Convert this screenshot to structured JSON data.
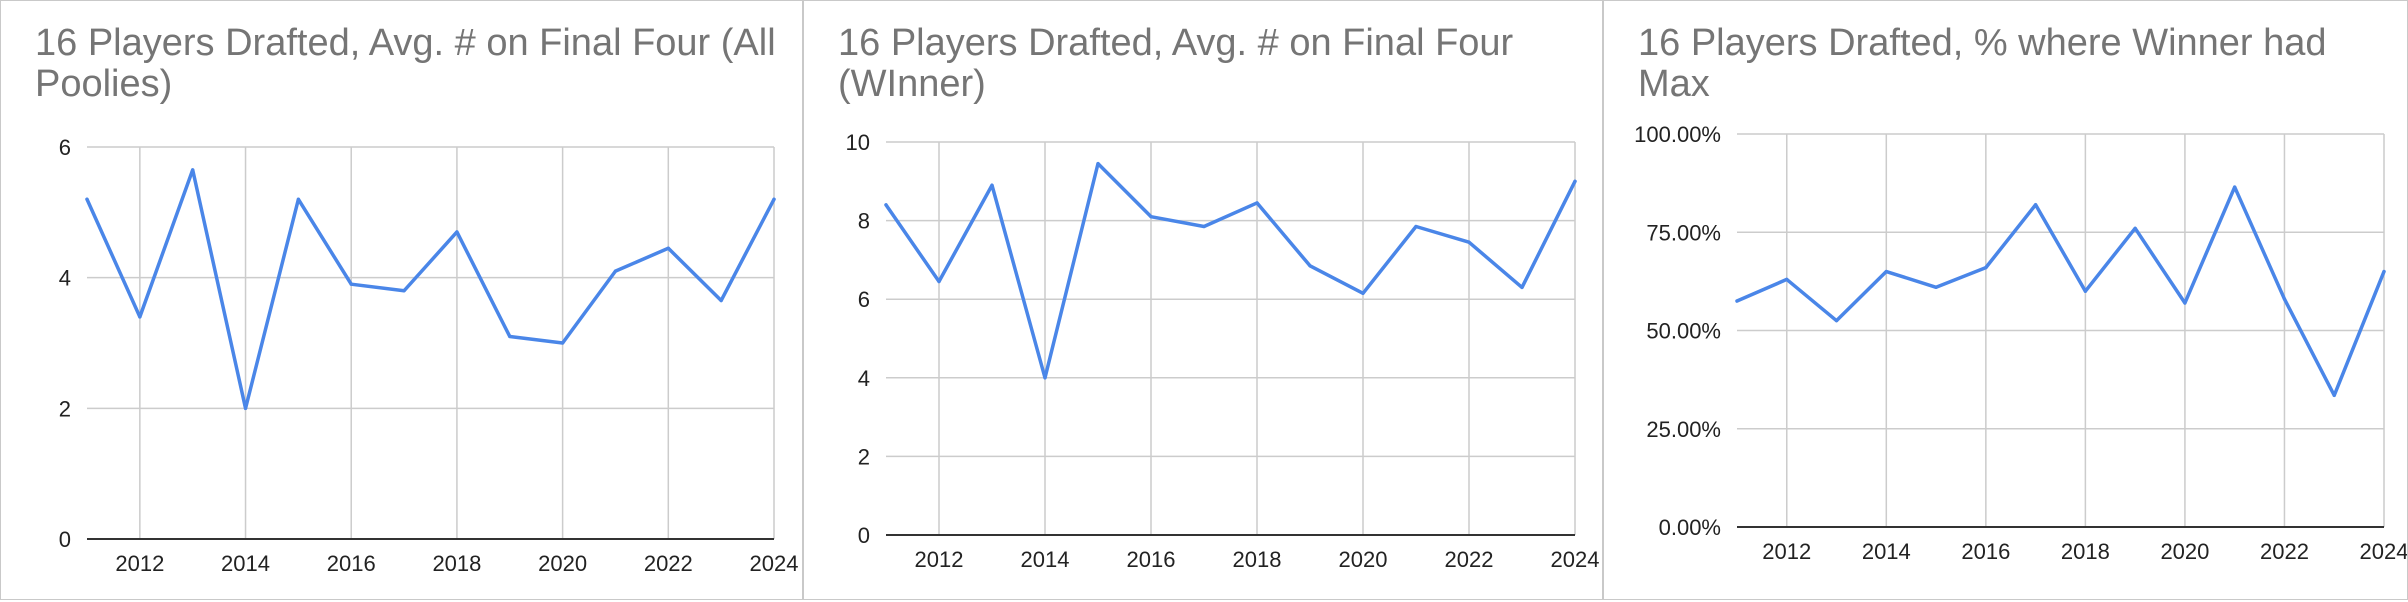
{
  "chart_data": [
    {
      "type": "line",
      "title": "16 Players Drafted, Avg. # on Final Four (All Poolies)",
      "x": [
        2011,
        2012,
        2013,
        2014,
        2015,
        2016,
        2017,
        2018,
        2019,
        2020,
        2021,
        2022,
        2023,
        2024
      ],
      "series": [
        {
          "values": [
            5.2,
            3.4,
            5.65,
            2.0,
            5.2,
            3.9,
            3.8,
            4.7,
            3.1,
            3.0,
            4.1,
            4.45,
            3.65,
            5.2
          ]
        }
      ],
      "xlim": [
        2011,
        2024
      ],
      "ylim": [
        0,
        6
      ],
      "x_ticks": [
        "2012",
        "2014",
        "2016",
        "2018",
        "2020",
        "2022",
        "2024"
      ],
      "y_ticks": [
        "0",
        "2",
        "4",
        "6"
      ],
      "xlabel": "",
      "ylabel": "",
      "grid": true,
      "legend": "none",
      "line_color": "#4a86e8"
    },
    {
      "type": "line",
      "title": "16 Players Drafted, Avg. # on Final Four (WInner)",
      "x": [
        2011,
        2012,
        2013,
        2014,
        2015,
        2016,
        2017,
        2018,
        2019,
        2020,
        2021,
        2022,
        2023,
        2024
      ],
      "series": [
        {
          "values": [
            8.4,
            6.45,
            8.9,
            4.0,
            9.45,
            8.1,
            7.85,
            8.45,
            6.85,
            6.15,
            7.85,
            7.45,
            6.3,
            9.0
          ]
        }
      ],
      "xlim": [
        2011,
        2024
      ],
      "ylim": [
        0,
        10
      ],
      "x_ticks": [
        "2012",
        "2014",
        "2016",
        "2018",
        "2020",
        "2022",
        "2024"
      ],
      "y_ticks": [
        "0",
        "2",
        "4",
        "6",
        "8",
        "10"
      ],
      "xlabel": "",
      "ylabel": "",
      "grid": true,
      "legend": "none",
      "line_color": "#4a86e8"
    },
    {
      "type": "line",
      "title": "16 Players Drafted, % where Winner had Max",
      "x": [
        2011,
        2012,
        2013,
        2014,
        2015,
        2016,
        2017,
        2018,
        2019,
        2020,
        2021,
        2022,
        2023,
        2024
      ],
      "series": [
        {
          "values": [
            57.5,
            63,
            52.5,
            65,
            61,
            66,
            82,
            60,
            76,
            57,
            86.5,
            58,
            33.5,
            65
          ]
        }
      ],
      "xlim": [
        2011,
        2024
      ],
      "ylim": [
        0,
        100
      ],
      "x_ticks": [
        "2012",
        "2014",
        "2016",
        "2018",
        "2020",
        "2022",
        "2024"
      ],
      "y_ticks": [
        "0.00%",
        "25.00%",
        "50.00%",
        "75.00%",
        "100.00%"
      ],
      "xlabel": "",
      "ylabel": "",
      "grid": true,
      "legend": "none",
      "line_color": "#4a86e8"
    }
  ]
}
